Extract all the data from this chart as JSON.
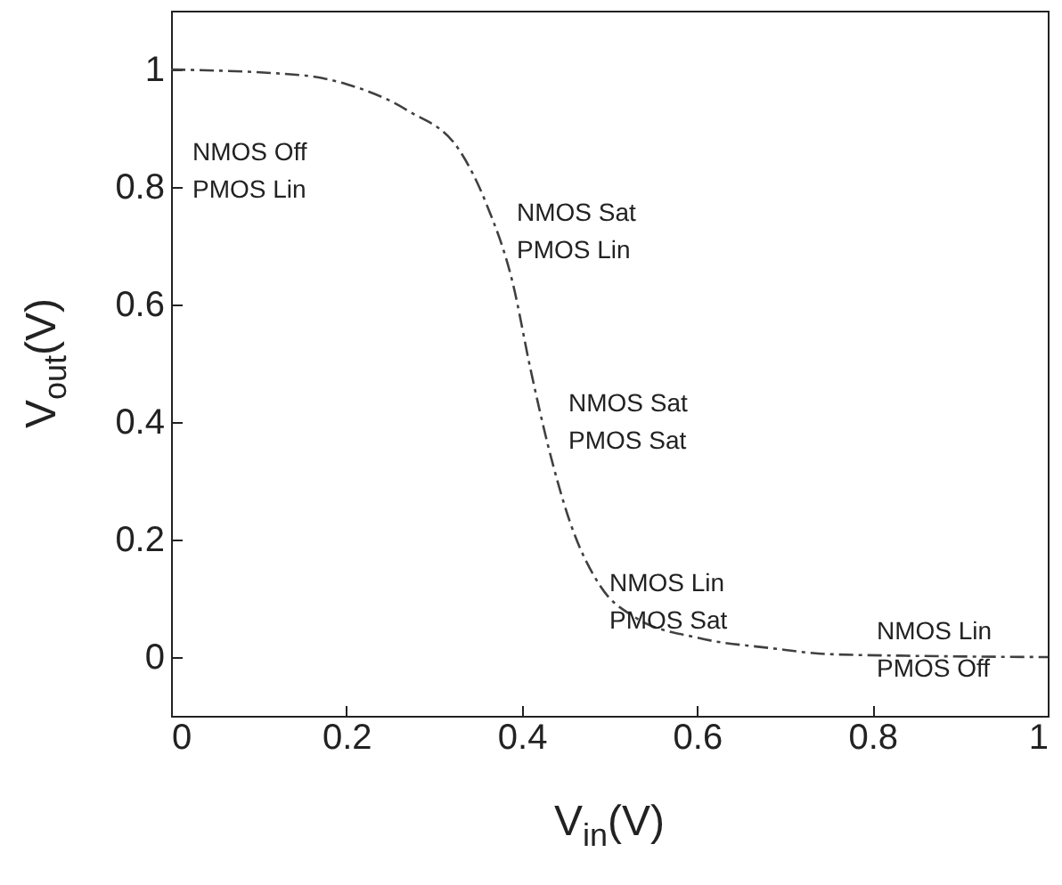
{
  "chart_data": {
    "type": "line",
    "xlabel": "V$_{in}$(V)",
    "ylabel": "V$_{out}$(V)",
    "x": [
      0,
      0.15,
      0.2,
      0.27,
      0.33,
      0.36,
      0.39,
      0.41,
      0.43,
      0.455,
      0.49,
      0.53,
      0.6,
      0.685,
      0.75,
      0.85,
      1
    ],
    "series": [
      {
        "color": "#404040",
        "values": [
          1,
          0.99,
          0.975,
          0.93,
          0.86,
          0.77,
          0.635,
          0.49,
          0.36,
          0.23,
          0.12,
          0.067,
          0.033,
          0.015,
          0.005,
          0.002,
          0
        ]
      }
    ],
    "xlim": [
      0,
      1
    ],
    "xticks": [
      0,
      0.2,
      0.4,
      0.6,
      0.8,
      1
    ],
    "ylim": [
      -0.1,
      1.1
    ],
    "yticks": [
      0,
      0.2,
      0.4,
      0.6,
      0.8,
      1
    ],
    "grid": false,
    "marker": "none",
    "line_style": "dashed",
    "annotations": [
      "NMOS Off\nPMOS Lin",
      "NMOS Sat\nPMOS Lin",
      "NMOS Sat\nPMOS Sat",
      "NMOS Lin\nPMOS Sat",
      "NMOS Lin\nPMOS Off"
    ]
  }
}
